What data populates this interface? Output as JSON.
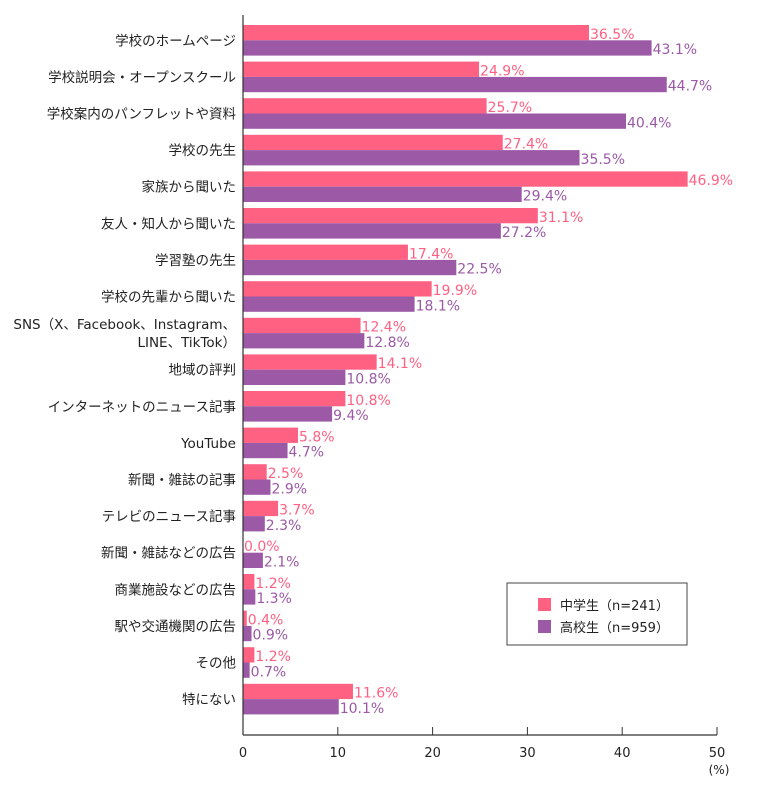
{
  "chart_data": {
    "type": "bar",
    "orientation": "horizontal",
    "categories": [
      "学校のホームページ",
      "学校説明会・オープンスクール",
      "学校案内のパンフレットや資料",
      "学校の先生",
      "家族から聞いた",
      "友人・知人から聞いた",
      "学習塾の先生",
      "学校の先輩から聞いた",
      "SNS（X、Facebook、Instagram、\nLINE、TikTok）",
      "地域の評判",
      "インターネットのニュース記事",
      "YouTube",
      "新聞・雑誌の記事",
      "テレビのニュース記事",
      "新聞・雑誌などの広告",
      "商業施設などの広告",
      "駅や交通機関の広告",
      "その他",
      "特にない"
    ],
    "series": [
      {
        "name": "中学生（n=241）",
        "color": "#ff6183",
        "values": [
          36.5,
          24.9,
          25.7,
          27.4,
          46.9,
          31.1,
          17.4,
          19.9,
          12.4,
          14.1,
          10.8,
          5.8,
          2.5,
          3.7,
          0.0,
          1.2,
          0.4,
          1.2,
          11.6
        ]
      },
      {
        "name": "高校生（n=959）",
        "color": "#9b59a6",
        "values": [
          43.1,
          44.7,
          40.4,
          35.5,
          29.4,
          27.2,
          22.5,
          18.1,
          12.8,
          10.8,
          9.4,
          4.7,
          2.9,
          2.3,
          2.1,
          1.3,
          0.9,
          0.7,
          10.1
        ]
      }
    ],
    "xlim": [
      0,
      50
    ],
    "xticks": [
      "0",
      "10",
      "20",
      "30",
      "40",
      "50"
    ],
    "xunit": "(%)",
    "grid": false,
    "legend_placement": "bottom-right"
  }
}
